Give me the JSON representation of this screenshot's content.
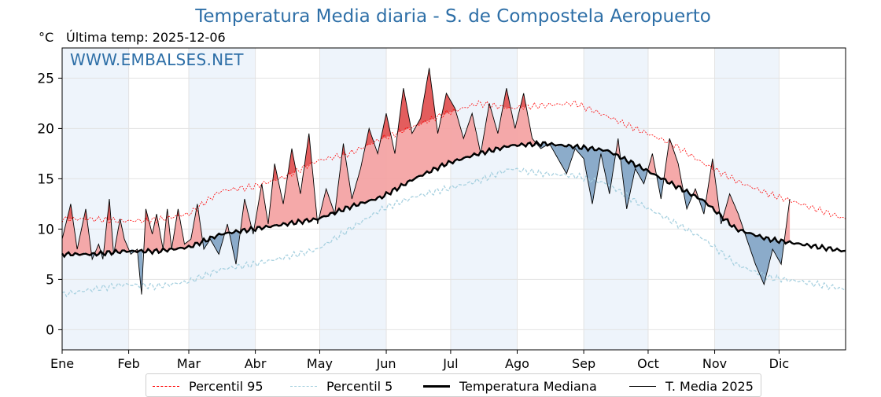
{
  "chart_title": "Temperatura Media diaria - S. de Compostela Aeropuerto",
  "unit_label": "°C",
  "last_temp_label": "Última temp: 2025-12-06",
  "watermark": "WWW.EMBALSES.NET",
  "colors": {
    "p95": "#ff0000",
    "p5": "#a8d1e0",
    "median": "#000000",
    "current": "#000000",
    "above_fill": "#f4a0a0",
    "above_fill_dark": "#e35d5d",
    "below_fill": "#7fa3c4",
    "month_band": "#eef4fb",
    "title": "#2e6fa7"
  },
  "legend": [
    {
      "label": "Percentil 95",
      "style": "p95"
    },
    {
      "label": "Percentil 5",
      "style": "p5"
    },
    {
      "label": "Temperatura Mediana",
      "style": "median"
    },
    {
      "label": "T. Media 2025",
      "style": "current"
    }
  ],
  "chart_data": {
    "type": "line",
    "title": "Temperatura Media diaria - S. de Compostela Aeropuerto",
    "ylabel": "°C",
    "ylim": [
      -2,
      28
    ],
    "yticks": [
      0,
      5,
      10,
      15,
      20,
      25
    ],
    "xlim_days": [
      1,
      366
    ],
    "months": [
      {
        "label": "Ene",
        "day": 1
      },
      {
        "label": "Feb",
        "day": 32
      },
      {
        "label": "Mar",
        "day": 60
      },
      {
        "label": "Abr",
        "day": 91
      },
      {
        "label": "May",
        "day": 121
      },
      {
        "label": "Jun",
        "day": 152
      },
      {
        "label": "Jul",
        "day": 182
      },
      {
        "label": "Ago",
        "day": 213
      },
      {
        "label": "Sep",
        "day": 244
      },
      {
        "label": "Oct",
        "day": 274
      },
      {
        "label": "Nov",
        "day": 305
      },
      {
        "label": "Dic",
        "day": 335
      }
    ],
    "grid": true,
    "legend_position": "bottom",
    "series": [
      {
        "name": "Percentil 95",
        "key": "p95",
        "x": [
          1,
          15,
          30,
          45,
          60,
          75,
          90,
          105,
          120,
          135,
          150,
          165,
          180,
          195,
          210,
          225,
          240,
          255,
          270,
          285,
          300,
          315,
          330,
          345,
          366
        ],
        "values": [
          11.0,
          11.0,
          10.8,
          10.9,
          11.5,
          13.8,
          14.2,
          15.2,
          16.8,
          17.5,
          19.0,
          20.2,
          21.5,
          22.5,
          22.0,
          22.3,
          22.5,
          21.2,
          19.8,
          18.5,
          16.5,
          14.8,
          13.5,
          12.5,
          11.0
        ]
      },
      {
        "name": "Percentil 5",
        "key": "p5",
        "x": [
          1,
          15,
          30,
          45,
          60,
          75,
          90,
          105,
          120,
          135,
          150,
          165,
          180,
          195,
          210,
          225,
          240,
          255,
          270,
          285,
          300,
          315,
          330,
          345,
          366
        ],
        "values": [
          3.5,
          4.0,
          4.5,
          4.3,
          4.8,
          6.0,
          6.5,
          7.2,
          8.0,
          10.0,
          12.0,
          13.2,
          14.0,
          14.8,
          16.0,
          15.5,
          15.3,
          14.5,
          12.5,
          10.8,
          9.0,
          6.5,
          5.2,
          4.8,
          4.0
        ]
      },
      {
        "name": "Temperatura Mediana",
        "key": "median",
        "x": [
          1,
          15,
          30,
          45,
          60,
          75,
          90,
          105,
          120,
          135,
          150,
          165,
          180,
          195,
          210,
          225,
          240,
          255,
          270,
          285,
          300,
          315,
          330,
          345,
          366
        ],
        "values": [
          7.5,
          7.5,
          7.8,
          7.8,
          8.2,
          9.5,
          10.0,
          10.5,
          11.0,
          12.2,
          13.2,
          15.0,
          16.5,
          17.5,
          18.3,
          18.5,
          18.2,
          17.8,
          16.2,
          14.5,
          12.8,
          10.0,
          9.0,
          8.5,
          7.8
        ]
      },
      {
        "name": "T. Media 2025",
        "key": "current",
        "x": [
          1,
          5,
          8,
          12,
          15,
          18,
          20,
          23,
          25,
          28,
          30,
          33,
          36,
          38,
          40,
          43,
          45,
          48,
          50,
          52,
          55,
          58,
          61,
          64,
          67,
          70,
          74,
          78,
          82,
          86,
          90,
          94,
          97,
          100,
          104,
          108,
          112,
          116,
          120,
          124,
          128,
          132,
          136,
          140,
          144,
          148,
          152,
          156,
          160,
          164,
          168,
          172,
          176,
          180,
          184,
          188,
          192,
          196,
          200,
          204,
          208,
          212,
          216,
          220,
          224,
          228,
          232,
          236,
          240,
          244,
          248,
          252,
          256,
          260,
          264,
          268,
          272,
          276,
          280,
          284,
          288,
          292,
          296,
          300,
          304,
          308,
          312,
          316,
          320,
          324,
          328,
          332,
          336,
          340
        ],
        "values": [
          9.0,
          12.5,
          8.0,
          12.0,
          7.0,
          8.5,
          7.0,
          13.0,
          7.5,
          11.0,
          9.0,
          7.5,
          8.0,
          3.5,
          12.0,
          9.5,
          11.5,
          8.0,
          12.0,
          8.0,
          12.0,
          8.5,
          9.0,
          12.5,
          8.0,
          9.0,
          7.5,
          10.5,
          6.5,
          13.0,
          9.5,
          14.5,
          10.5,
          16.5,
          12.5,
          18.0,
          13.5,
          19.5,
          10.5,
          14.0,
          11.5,
          18.5,
          13.0,
          16.0,
          20.0,
          17.5,
          21.5,
          17.5,
          24.0,
          19.5,
          21.0,
          26.0,
          19.5,
          23.5,
          22.0,
          19.0,
          21.5,
          17.5,
          22.5,
          19.5,
          24.0,
          20.0,
          23.5,
          19.0,
          18.0,
          18.5,
          17.0,
          15.5,
          18.0,
          17.0,
          12.5,
          17.5,
          13.5,
          19.0,
          12.0,
          16.0,
          14.5,
          17.5,
          13.0,
          19.0,
          16.5,
          12.0,
          14.0,
          11.5,
          17.0,
          10.5,
          13.5,
          11.5,
          9.0,
          6.5,
          4.5,
          8.0,
          6.5,
          13.0
        ]
      }
    ]
  }
}
